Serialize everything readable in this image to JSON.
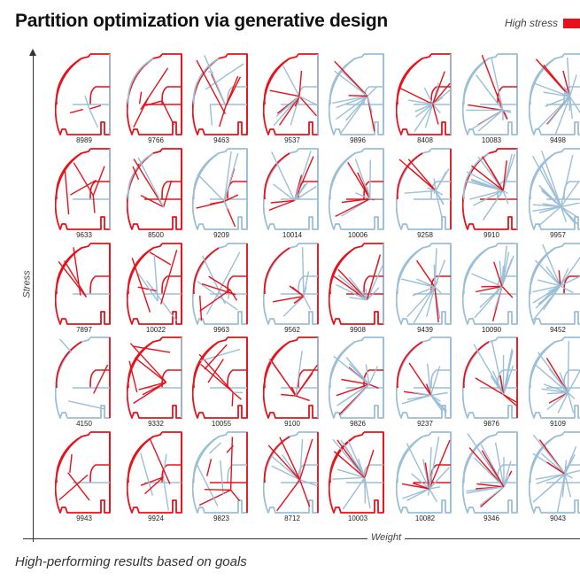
{
  "title": "Partition optimization via generative design",
  "legend": {
    "label": "High stress",
    "color": "#e8101a",
    "low_color": "#9bbfd6"
  },
  "chart_data": {
    "type": "table",
    "title": "Partition optimization via generative design",
    "xlabel": "Weight",
    "ylabel": "Stress",
    "caption": "High-performing results based on goals",
    "rows": [
      [
        8989,
        9766,
        9463,
        9537,
        9896,
        8408,
        10083,
        9498
      ],
      [
        9633,
        8500,
        9209,
        10014,
        10006,
        9258,
        9910,
        9957
      ],
      [
        7897,
        10022,
        9963,
        9562,
        9908,
        9439,
        10090,
        9452
      ],
      [
        4150,
        9332,
        10055,
        9100,
        9826,
        9237,
        9876,
        9109
      ],
      [
        9943,
        9924,
        9823,
        8712,
        10003,
        10082,
        9346,
        9043
      ]
    ]
  }
}
